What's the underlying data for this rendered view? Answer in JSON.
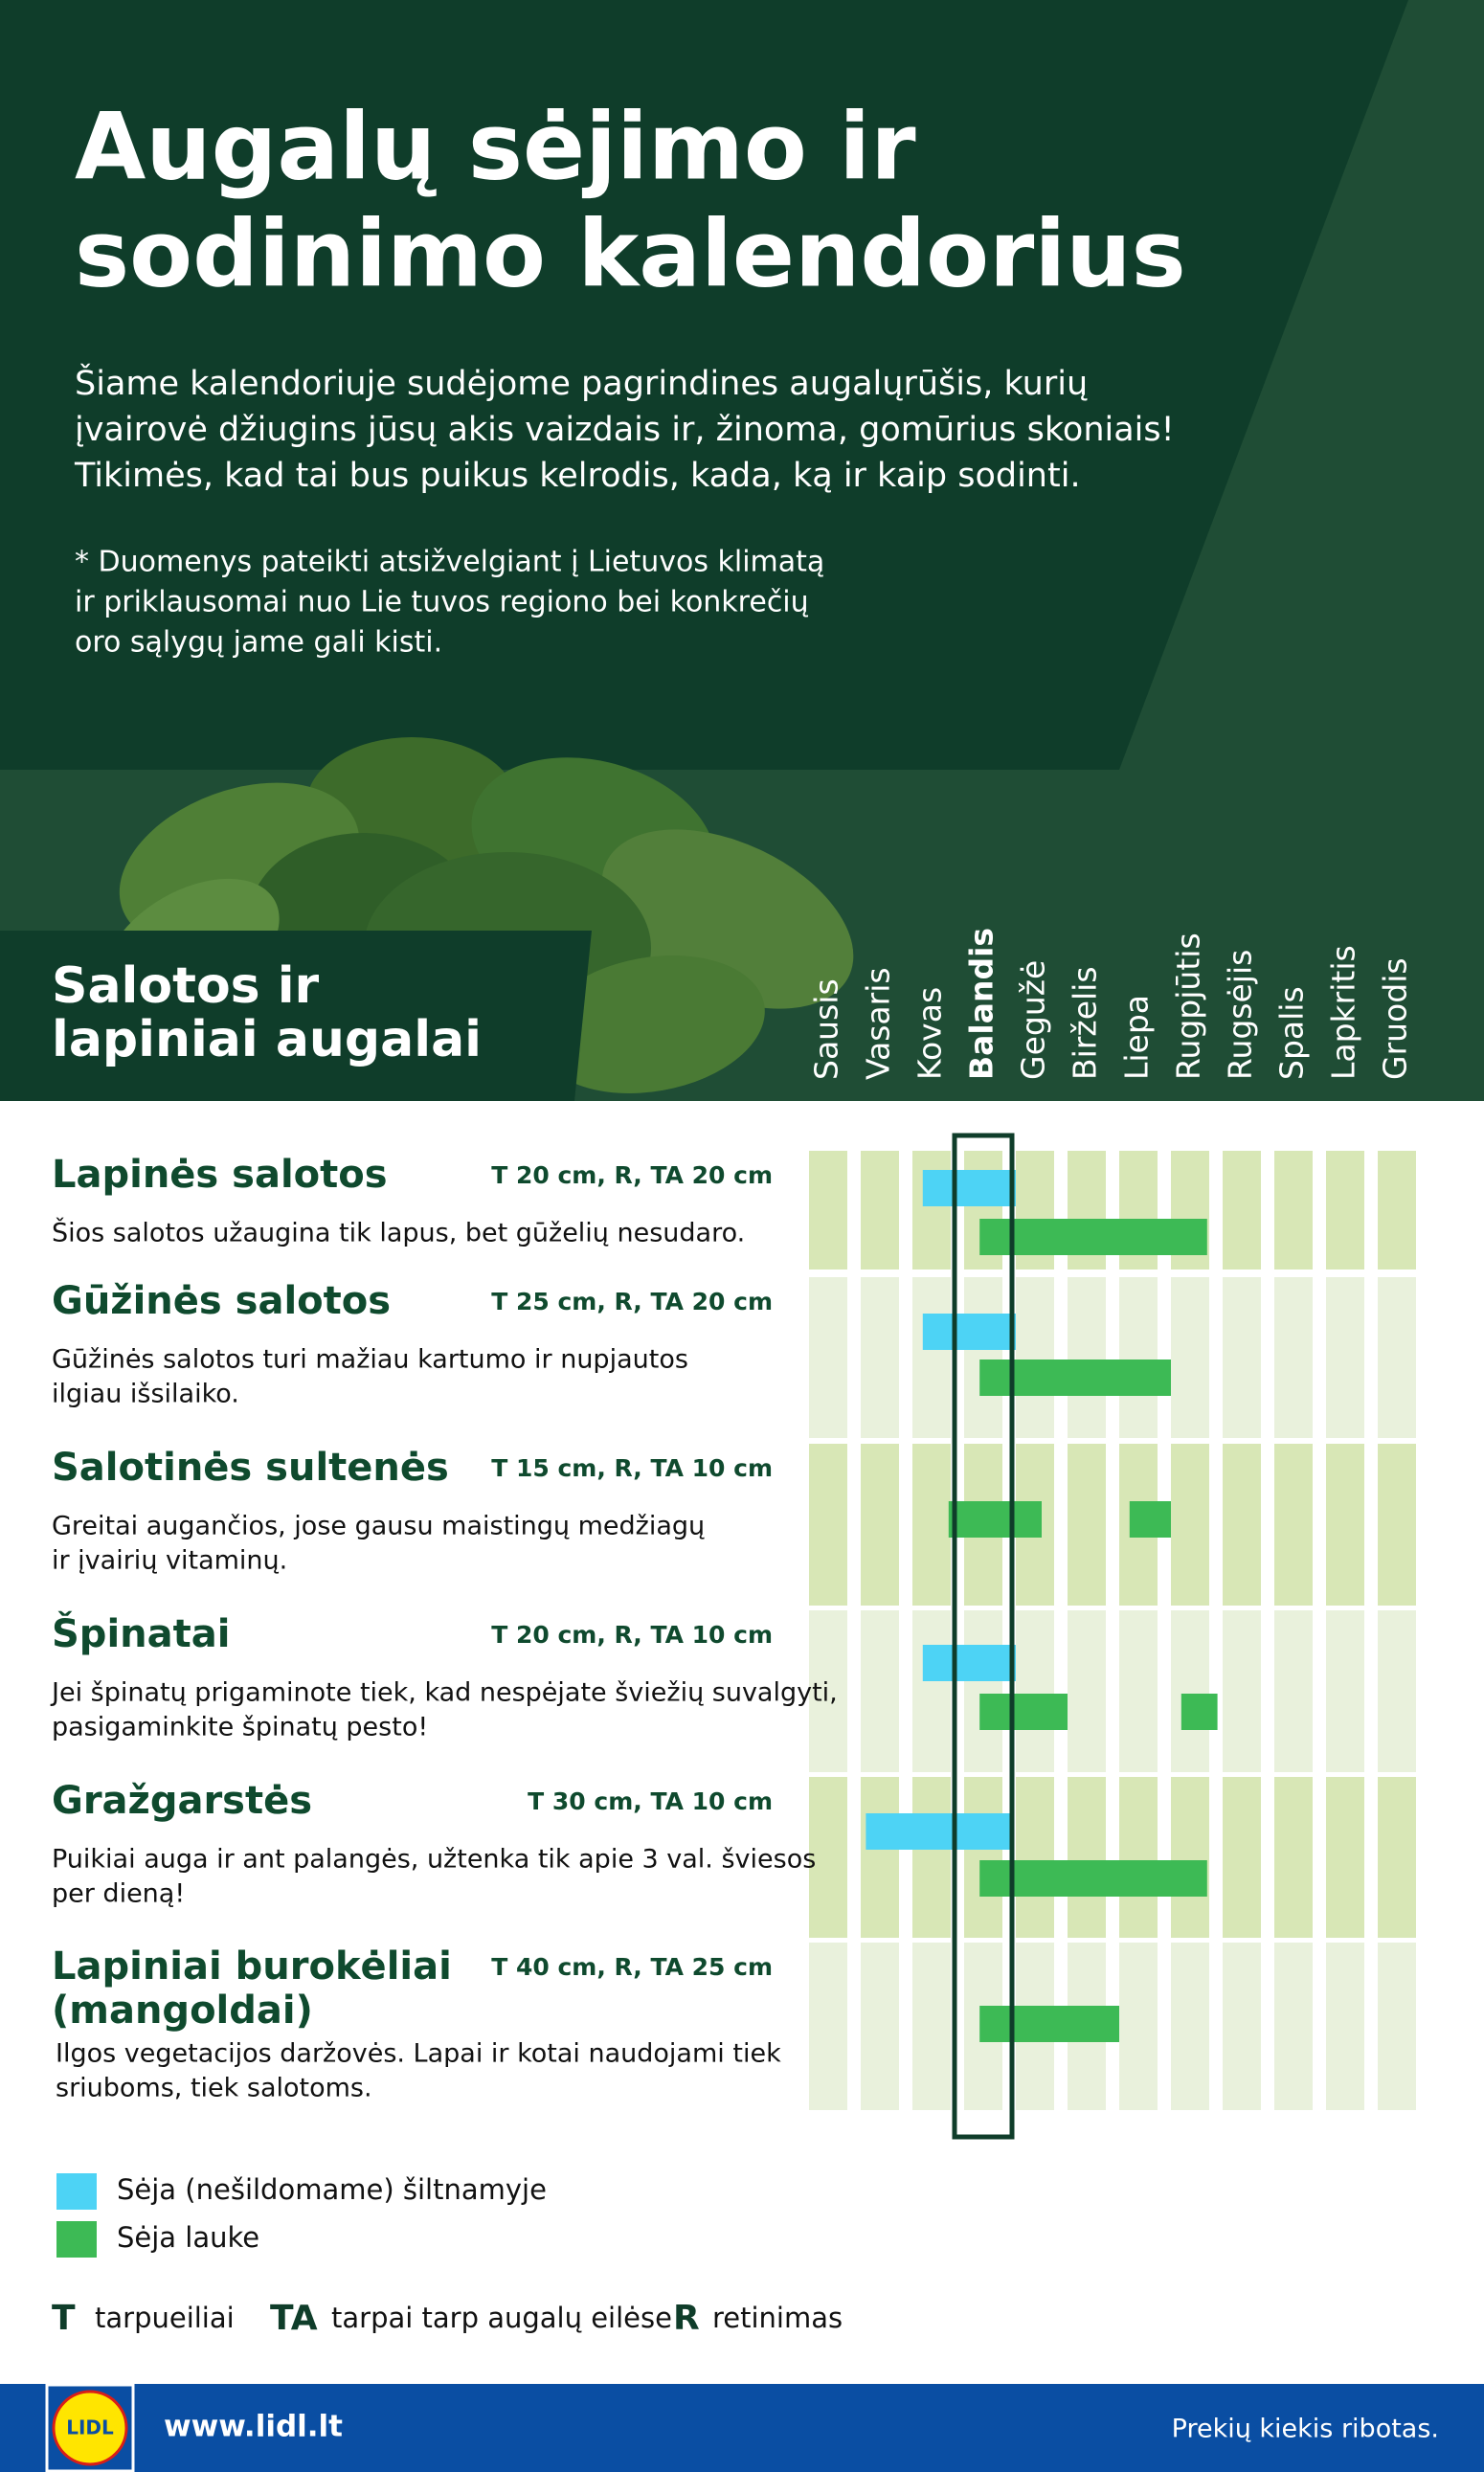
{
  "header": {
    "title": [
      "Augalų sėjimo ir",
      "sodinimo kalendorius"
    ],
    "intro": [
      "Šiame kalendoriuje sudėjome pagrindines augalųrūšis, kurių",
      "įvairovė džiugins jūsų akis vaizdais ir, žinoma, gomūrius skoniais!",
      "Tikimės, kad tai bus puikus kelrodis, kada, ką ir kaip sodinti."
    ],
    "note": [
      "* Duomenys pateikti atsižvelgiant į Lietuvos klimatą",
      "ir priklausomai nuo Lie tuvos regiono bei konkrečių",
      "oro sąlygų jame gali kisti."
    ]
  },
  "section": [
    "Salotos ir",
    "lapiniai augalai"
  ],
  "months": [
    "Sausis",
    "Vasaris",
    "Kovas",
    "Balandis",
    "Gegužė",
    "Birželis",
    "Liepa",
    "Rugpjūtis",
    "Rugsėjis",
    "Spalis",
    "Lapkritis",
    "Gruodis"
  ],
  "highlight_month_index": 3,
  "crops": [
    {
      "name": [
        "Lapinės salotos"
      ],
      "spacing": "T 20 cm, R, TA 20 cm",
      "description": [
        "Šios salotos užaugina tik lapus, bet gūželių nesudaro."
      ],
      "greenhouse": [
        [
          2.2,
          4.0
        ]
      ],
      "outdoor": [
        [
          3.3,
          7.7
        ]
      ]
    },
    {
      "name": [
        "Gūžinės salotos"
      ],
      "spacing": "T 25 cm, R, TA 20 cm",
      "description": [
        "Gūžinės salotos turi mažiau kartumo ir nupjautos",
        "ilgiau išsilaiko."
      ],
      "greenhouse": [
        [
          2.2,
          4.0
        ]
      ],
      "outdoor": [
        [
          3.3,
          7.0
        ]
      ]
    },
    {
      "name": [
        "Salotinės sultenės"
      ],
      "spacing": "T 15 cm, R, TA 10 cm",
      "description": [
        "Greitai augančios, jose gausu maistingų medžiagų",
        "ir įvairių vitaminų."
      ],
      "greenhouse": [],
      "outdoor": [
        [
          2.7,
          4.5
        ],
        [
          6.2,
          7.0
        ]
      ]
    },
    {
      "name": [
        "Špinatai"
      ],
      "spacing": "T 20 cm, R, TA 10 cm",
      "description": [
        "Jei špinatų prigaminote tiek, kad nespėjate šviežių suvalgyti,",
        "pasigaminkite špinatų pesto!"
      ],
      "greenhouse": [
        [
          2.2,
          4.0
        ]
      ],
      "outdoor": [
        [
          3.3,
          5.0
        ],
        [
          7.2,
          7.9
        ]
      ]
    },
    {
      "name": [
        "Gražgarstės"
      ],
      "spacing": "T 30 cm, TA 10 cm",
      "description": [
        "Puikiai auga ir ant palangės, užtenka tik apie 3 val. šviesos",
        "per dieną!"
      ],
      "greenhouse": [
        [
          1.1,
          3.9
        ]
      ],
      "outdoor": [
        [
          3.3,
          7.7
        ]
      ]
    },
    {
      "name": [
        "Lapiniai burokėliai",
        "(mangoldai)"
      ],
      "spacing": "T 40 cm, R, TA 25 cm",
      "description": [
        "Ilgos vegetacijos daržovės. Lapai ir kotai naudojami tiek",
        "sriuboms, tiek salotoms."
      ],
      "greenhouse": [],
      "outdoor": [
        [
          3.3,
          6.0
        ]
      ]
    }
  ],
  "legend": {
    "greenhouse": {
      "label": "Sėja (nešildomame) šiltnamyje",
      "color": "#4dd3f5"
    },
    "outdoor": {
      "label": "Sėja lauke",
      "color": "#3dba55"
    }
  },
  "abbreviations": [
    {
      "abbr": "T",
      "text": "tarpueiliai"
    },
    {
      "abbr": "TA",
      "text": "tarpai tarp augalų eilėse"
    },
    {
      "abbr": "R",
      "text": "retinimas"
    }
  ],
  "footer": {
    "logo": "LIDL",
    "url": "www.lidl.lt",
    "note": "Prekių kiekis ribotas."
  }
}
